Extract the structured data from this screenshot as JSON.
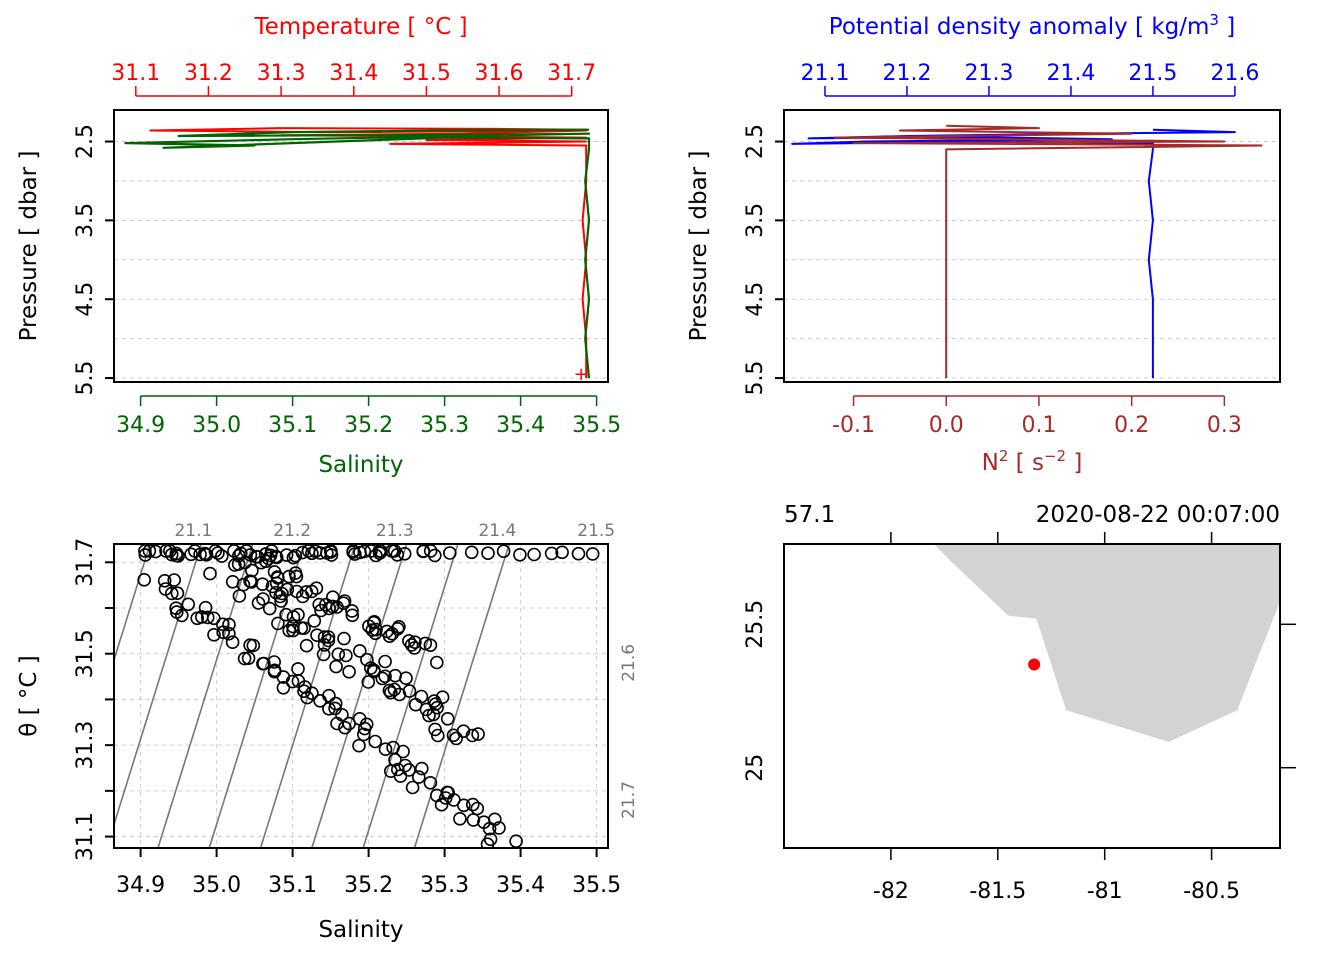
{
  "colors": {
    "temperature": "#ff0000",
    "salinity": "#006400",
    "density": "#0000ff",
    "n2": "#a52a2a",
    "axis": "#000000",
    "grid": "#cccccc",
    "isopycnal": "#777777",
    "land": "#d3d3d3",
    "station": "#ff0000"
  },
  "chart_data": [
    {
      "id": "profile-ts",
      "type": "line",
      "top_axis_label": "Temperature [ °C ]",
      "bottom_axis_label": "Salinity",
      "ylabel": "Pressure [ dbar ]",
      "ylim": [
        5.55,
        2.1
      ],
      "x_top_lim": [
        31.07,
        31.75
      ],
      "x_bottom_lim": [
        34.865,
        35.515
      ],
      "x_top_ticks": [
        31.1,
        31.2,
        31.3,
        31.4,
        31.5,
        31.6,
        31.7
      ],
      "x_top_tick_labels": [
        "31.1",
        "31.2",
        "31.3",
        "31.4",
        "31.5",
        "31.6",
        "31.7"
      ],
      "x_bottom_ticks": [
        34.9,
        35.0,
        35.1,
        35.2,
        35.3,
        35.4,
        35.5
      ],
      "x_bottom_tick_labels": [
        "34.9",
        "35.0",
        "35.1",
        "35.2",
        "35.3",
        "35.4",
        "35.5"
      ],
      "y_ticks": [
        2.5,
        3.5,
        4.5,
        5.5
      ],
      "y_tick_labels": [
        "2.5",
        "3.5",
        "4.5",
        "5.5"
      ],
      "y_grid": [
        2.5,
        3.0,
        3.5,
        4.0,
        4.5,
        5.0,
        5.5
      ],
      "series": [
        {
          "name": "Temperature",
          "axis": "top",
          "points": [
            [
              31.72,
              2.35
            ],
            [
              31.6,
              2.34
            ],
            [
              31.3,
              2.33
            ],
            [
              31.12,
              2.36
            ],
            [
              31.35,
              2.38
            ],
            [
              31.6,
              2.37
            ],
            [
              31.72,
              2.36
            ],
            [
              31.55,
              2.4
            ],
            [
              31.3,
              2.42
            ],
            [
              31.6,
              2.44
            ],
            [
              31.72,
              2.45
            ],
            [
              31.5,
              2.48
            ],
            [
              31.72,
              2.5
            ],
            [
              31.45,
              2.53
            ],
            [
              31.72,
              2.55
            ],
            [
              31.72,
              2.7
            ],
            [
              31.72,
              3.0
            ],
            [
              31.715,
              3.5
            ],
            [
              31.72,
              4.0
            ],
            [
              31.715,
              4.5
            ],
            [
              31.72,
              5.0
            ],
            [
              31.72,
              5.5
            ]
          ]
        },
        {
          "name": "Salinity",
          "axis": "bottom",
          "points": [
            [
              35.49,
              2.35
            ],
            [
              35.3,
              2.36
            ],
            [
              35.1,
              2.38
            ],
            [
              34.95,
              2.43
            ],
            [
              35.2,
              2.42
            ],
            [
              35.4,
              2.41
            ],
            [
              35.49,
              2.4
            ],
            [
              35.1,
              2.47
            ],
            [
              34.88,
              2.52
            ],
            [
              35.05,
              2.55
            ],
            [
              34.93,
              2.58
            ],
            [
              35.3,
              2.45
            ],
            [
              35.49,
              2.46
            ],
            [
              35.49,
              2.6
            ],
            [
              35.485,
              3.0
            ],
            [
              35.49,
              3.5
            ],
            [
              35.485,
              4.0
            ],
            [
              35.49,
              4.5
            ],
            [
              35.485,
              5.0
            ],
            [
              35.49,
              5.5
            ]
          ]
        }
      ]
    },
    {
      "id": "profile-density-n2",
      "type": "line",
      "top_axis_label": "Potential density anomaly [ kg/m",
      "top_axis_label_sup": "3",
      "top_axis_label_end": " ]",
      "bottom_axis_label": "N",
      "bottom_axis_label_sup": "2",
      "bottom_axis_label_end": " [ s",
      "bottom_axis_label_sup2": "−2",
      "bottom_axis_label_end2": " ]",
      "ylabel": "Pressure [ dbar ]",
      "ylim": [
        5.55,
        2.1
      ],
      "x_top_lim": [
        21.05,
        21.655
      ],
      "x_bottom_lim": [
        -0.175,
        0.36
      ],
      "x_top_ticks": [
        21.1,
        21.2,
        21.3,
        21.4,
        21.5,
        21.6
      ],
      "x_top_tick_labels": [
        "21.1",
        "21.2",
        "21.3",
        "21.4",
        "21.5",
        "21.6"
      ],
      "x_bottom_ticks": [
        -0.1,
        0.0,
        0.1,
        0.2,
        0.3
      ],
      "x_bottom_tick_labels": [
        "-0.1",
        "0.0",
        "0.1",
        "0.2",
        "0.3"
      ],
      "y_ticks": [
        2.5,
        3.5,
        4.5,
        5.5
      ],
      "y_tick_labels": [
        "2.5",
        "3.5",
        "4.5",
        "5.5"
      ],
      "y_grid": [
        2.5,
        3.0,
        3.5,
        4.0,
        4.5,
        5.0,
        5.5
      ],
      "series": [
        {
          "name": "Potential density anomaly",
          "axis": "top",
          "points": [
            [
              21.5,
              2.35
            ],
            [
              21.6,
              2.38
            ],
            [
              21.4,
              2.4
            ],
            [
              21.2,
              2.43
            ],
            [
              21.08,
              2.46
            ],
            [
              21.25,
              2.44
            ],
            [
              21.45,
              2.47
            ],
            [
              21.15,
              2.5
            ],
            [
              21.06,
              2.53
            ],
            [
              21.3,
              2.5
            ],
            [
              21.5,
              2.52
            ],
            [
              21.5,
              2.6
            ],
            [
              21.495,
              3.0
            ],
            [
              21.5,
              3.5
            ],
            [
              21.495,
              4.0
            ],
            [
              21.5,
              4.5
            ],
            [
              21.5,
              5.0
            ],
            [
              21.5,
              5.5
            ]
          ]
        },
        {
          "name": "N2",
          "axis": "bottom",
          "points": [
            [
              0.0,
              2.3
            ],
            [
              0.1,
              2.33
            ],
            [
              -0.05,
              2.36
            ],
            [
              0.2,
              2.4
            ],
            [
              -0.12,
              2.45
            ],
            [
              0.3,
              2.5
            ],
            [
              -0.1,
              2.52
            ],
            [
              0.34,
              2.55
            ],
            [
              0.0,
              2.6
            ],
            [
              0.0,
              3.0
            ],
            [
              0.0,
              3.5
            ],
            [
              0.0,
              4.0
            ],
            [
              0.0,
              4.5
            ],
            [
              0.0,
              5.0
            ],
            [
              0.0,
              5.5
            ]
          ]
        }
      ]
    },
    {
      "id": "ts-diagram",
      "type": "scatter",
      "xlabel": "Salinity",
      "ylabel": "θ [ °C ]",
      "xlim": [
        34.865,
        35.515
      ],
      "ylim": [
        31.075,
        31.74
      ],
      "x_ticks": [
        34.9,
        35.0,
        35.1,
        35.2,
        35.3,
        35.4,
        35.5
      ],
      "x_tick_labels": [
        "34.9",
        "35.0",
        "35.1",
        "35.2",
        "35.3",
        "35.4",
        "35.5"
      ],
      "y_ticks": [
        31.1,
        31.2,
        31.3,
        31.4,
        31.5,
        31.6,
        31.7
      ],
      "y_tick_labels": [
        "31.1",
        "",
        "31.3",
        "",
        "31.5",
        "",
        "31.7"
      ],
      "isopycnal_labels_top": [
        {
          "text": "21.1",
          "s": 34.98
        },
        {
          "text": "21.2",
          "s": 35.11
        },
        {
          "text": "21.3",
          "s": 35.245
        },
        {
          "text": "21.4",
          "s": 35.38
        },
        {
          "text": "21.5",
          "s": 35.51
        }
      ],
      "isopycnal_labels_right": [
        {
          "text": "21.6",
          "t": 31.48
        },
        {
          "text": "21.7",
          "t": 31.18
        }
      ],
      "point_bands": [
        {
          "s0": 34.9,
          "s1": 35.27,
          "t0": 31.72,
          "t1": 31.72,
          "n": 60,
          "jitter_s": 0.02,
          "jitter_t": 0.01
        },
        {
          "s0": 35.27,
          "s1": 35.5,
          "t0": 31.72,
          "t1": 31.72,
          "n": 12,
          "jitter_s": 0.01,
          "jitter_t": 0.005
        },
        {
          "s0": 34.92,
          "s1": 35.38,
          "t0": 31.66,
          "t1": 31.09,
          "n": 85,
          "jitter_s": 0.02,
          "jitter_t": 0.02
        },
        {
          "s0": 35.0,
          "s1": 35.33,
          "t0": 31.7,
          "t1": 31.32,
          "n": 75,
          "jitter_s": 0.025,
          "jitter_t": 0.025
        },
        {
          "s0": 35.05,
          "s1": 35.28,
          "t0": 31.7,
          "t1": 31.5,
          "n": 45,
          "jitter_s": 0.02,
          "jitter_t": 0.02
        }
      ]
    },
    {
      "id": "station-map",
      "type": "scatter",
      "top_left_label": "57.1",
      "top_right_label": "2020-08-22 00:07:00",
      "xlim": [
        -82.5,
        -80.18
      ],
      "ylim": [
        24.72,
        25.78
      ],
      "x_ticks": [
        -82,
        -81.5,
        -81,
        -80.5
      ],
      "x_tick_labels": [
        "-82",
        "-81.5",
        "-81",
        "-80.5"
      ],
      "y_ticks": [
        25,
        25.5
      ],
      "y_tick_labels": [
        "25",
        "25.5"
      ],
      "land_polygon": [
        [
          -81.8,
          25.78
        ],
        [
          -81.72,
          25.72
        ],
        [
          -81.45,
          25.53
        ],
        [
          -81.32,
          25.52
        ],
        [
          -81.18,
          25.2
        ],
        [
          -80.7,
          25.09
        ],
        [
          -80.38,
          25.2
        ],
        [
          -80.18,
          25.58
        ],
        [
          -80.18,
          25.78
        ]
      ],
      "station": {
        "lon": -81.33,
        "lat": 25.36
      }
    }
  ]
}
